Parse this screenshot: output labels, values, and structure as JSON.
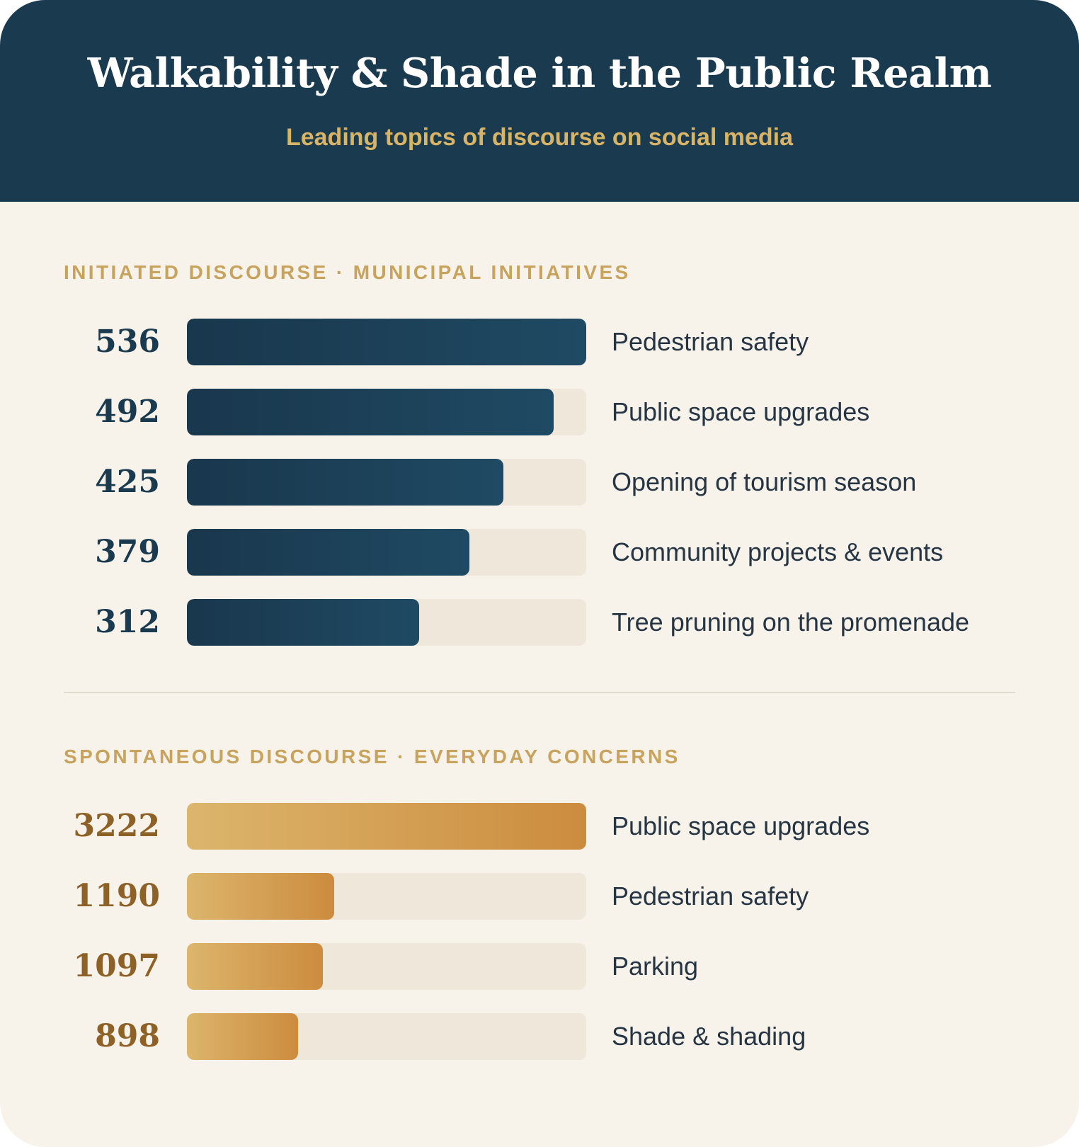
{
  "header": {
    "title": "Walkability & Shade in the Public Realm",
    "subtitle": "Leading topics of discourse on social media"
  },
  "colors": {
    "header_bg": "#1a3a4f",
    "page_bg": "#f7f2ea",
    "accent_gold": "#d8b466",
    "navy_bar_start": "#19374d",
    "navy_bar_end": "#1f4a63",
    "gold_bar_start": "#dcb56c",
    "gold_bar_end": "#cc8c3e",
    "track": "#efe7d9"
  },
  "chart_data": [
    {
      "type": "bar",
      "orientation": "horizontal",
      "title": "INITIATED DISCOURSE · MUNICIPAL INITIATIVES",
      "color_theme": "navy",
      "categories": [
        "Pedestrian safety",
        "Public space upgrades",
        "Opening of tourism season",
        "Community projects & events",
        "Tree pruning on the promenade"
      ],
      "values": [
        536,
        492,
        425,
        379,
        312
      ],
      "xlim": [
        0,
        536
      ],
      "grid": false
    },
    {
      "type": "bar",
      "orientation": "horizontal",
      "title": "SPONTANEOUS DISCOURSE · EVERYDAY CONCERNS",
      "color_theme": "gold",
      "categories": [
        "Public space upgrades",
        "Pedestrian safety",
        "Parking",
        "Shade & shading"
      ],
      "values": [
        3222,
        1190,
        1097,
        898
      ],
      "xlim": [
        0,
        3222
      ],
      "grid": false
    }
  ]
}
